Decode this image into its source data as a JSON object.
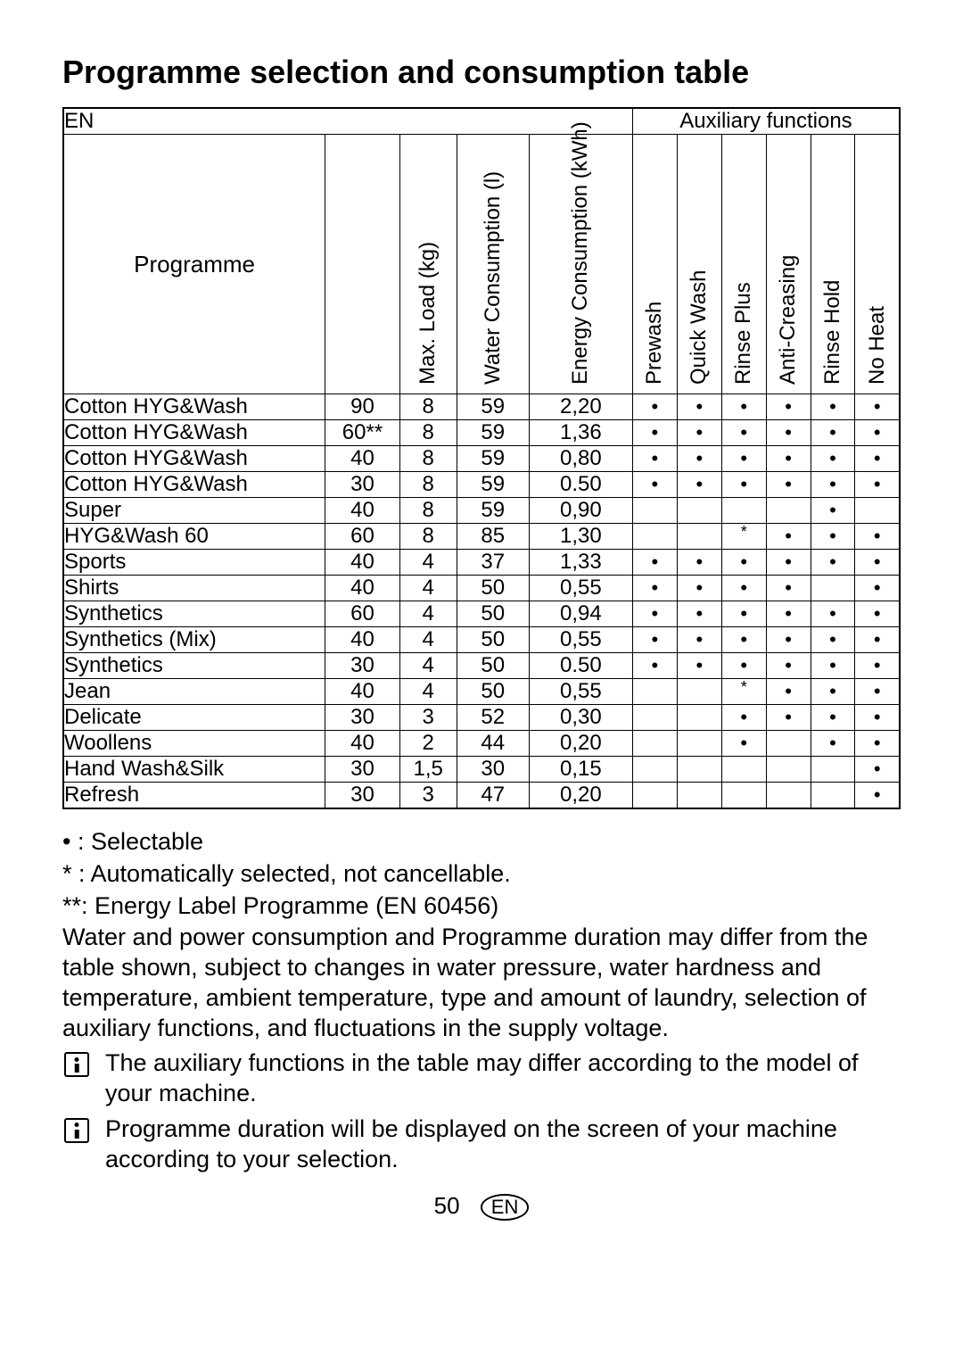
{
  "title": "Programme selection and consumption table",
  "header": {
    "corner_label": "EN",
    "aux_label": "Auxiliary functions"
  },
  "columns": {
    "programme": "Programme",
    "max_load": "Max. Load (kg)",
    "water": "Water Consumption (l)",
    "energy": "Energy Consumption (kWh)",
    "aux": [
      "Prewash",
      "Quick Wash",
      "Rinse Plus",
      "Anti-Creasing",
      "Rinse Hold",
      "No Heat"
    ]
  },
  "rows": [
    {
      "name": "Cotton HYG&Wash",
      "temp": "90",
      "load": "8",
      "water": "59",
      "energy": "2,20",
      "aux": [
        "•",
        "•",
        "•",
        "•",
        "•",
        "•"
      ]
    },
    {
      "name": "Cotton HYG&Wash",
      "temp": "60**",
      "load": "8",
      "water": "59",
      "energy": "1,36",
      "aux": [
        "•",
        "•",
        "•",
        "•",
        "•",
        "•"
      ]
    },
    {
      "name": "Cotton HYG&Wash",
      "temp": "40",
      "load": "8",
      "water": "59",
      "energy": "0,80",
      "aux": [
        "•",
        "•",
        "•",
        "•",
        "•",
        "•"
      ]
    },
    {
      "name": "Cotton HYG&Wash",
      "temp": "30",
      "load": "8",
      "water": "59",
      "energy": "0.50",
      "aux": [
        "•",
        "•",
        "•",
        "•",
        "•",
        "•"
      ]
    },
    {
      "name": "Super",
      "temp": "40",
      "load": "8",
      "water": "59",
      "energy": "0,90",
      "aux": [
        "",
        "",
        "",
        "",
        "•",
        ""
      ]
    },
    {
      "name": "HYG&Wash 60",
      "temp": "60",
      "load": "8",
      "water": "85",
      "energy": "1,30",
      "aux": [
        "",
        "",
        "*",
        "•",
        "•",
        "•"
      ]
    },
    {
      "name": "Sports",
      "temp": "40",
      "load": "4",
      "water": "37",
      "energy": "1,33",
      "aux": [
        "•",
        "•",
        "•",
        "•",
        "•",
        "•"
      ]
    },
    {
      "name": "Shirts",
      "temp": "40",
      "load": "4",
      "water": "50",
      "energy": "0,55",
      "aux": [
        "•",
        "•",
        "•",
        "•",
        "",
        "•"
      ]
    },
    {
      "name": "Synthetics",
      "temp": "60",
      "load": "4",
      "water": "50",
      "energy": "0,94",
      "aux": [
        "•",
        "•",
        "•",
        "•",
        "•",
        "•"
      ]
    },
    {
      "name": "Synthetics (Mix)",
      "temp": "40",
      "load": "4",
      "water": "50",
      "energy": "0,55",
      "aux": [
        "•",
        "•",
        "•",
        "•",
        "•",
        "•"
      ]
    },
    {
      "name": "Synthetics",
      "temp": "30",
      "load": "4",
      "water": "50",
      "energy": "0.50",
      "aux": [
        "•",
        "•",
        "•",
        "•",
        "•",
        "•"
      ]
    },
    {
      "name": "Jean",
      "temp": "40",
      "load": "4",
      "water": "50",
      "energy": "0,55",
      "aux": [
        "",
        "",
        "*",
        "•",
        "•",
        "•"
      ]
    },
    {
      "name": "Delicate",
      "temp": "30",
      "load": "3",
      "water": "52",
      "energy": "0,30",
      "aux": [
        "",
        "",
        "•",
        "•",
        "•",
        "•"
      ]
    },
    {
      "name": "Woollens",
      "temp": "40",
      "load": "2",
      "water": "44",
      "energy": "0,20",
      "aux": [
        "",
        "",
        "•",
        "",
        "•",
        "•"
      ]
    },
    {
      "name": "Hand Wash&Silk",
      "temp": "30",
      "load": "1,5",
      "water": "30",
      "energy": "0,15",
      "aux": [
        "",
        "",
        "",
        "",
        "",
        "•"
      ]
    },
    {
      "name": "Refresh",
      "temp": "30",
      "load": "3",
      "water": "47",
      "energy": "0,20",
      "aux": [
        "",
        "",
        "",
        "",
        "",
        "•"
      ]
    }
  ],
  "legend": {
    "dot": "• : Selectable",
    "star": "* : Automatically selected, not cancellable.",
    "dblstar": "**: Energy Label Programme (EN 60456)",
    "note": "Water and power consumption and Programme duration may differ from the table shown, subject to changes in water pressure, water hardness and temperature, ambient temperature, type and amount of laundry, selection of auxiliary functions, and fluctuations in the supply voltage.",
    "info1": "The auxiliary functions in the table may differ according to the model of your machine.",
    "info2": "Programme duration will be displayed on the screen of your machine according to your selection."
  },
  "footer": {
    "page": "50",
    "lang": "EN"
  },
  "style": {
    "colors": {
      "text": "#000000",
      "background": "#ffffff",
      "border": "#000000"
    },
    "fonts": {
      "title_size_pt": 27,
      "body_size_pt": 18,
      "table_size_pt": 18
    }
  }
}
